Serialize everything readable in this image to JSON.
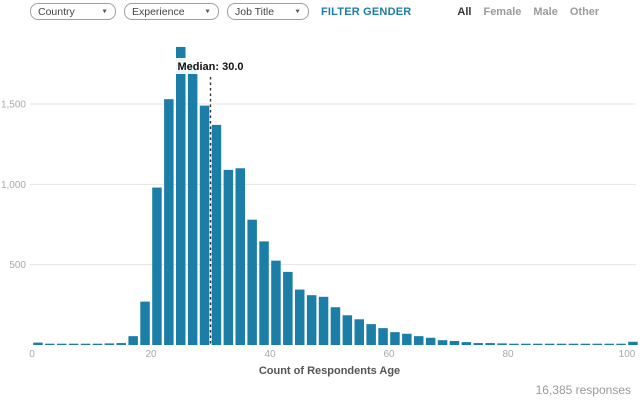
{
  "colors": {
    "accent": "#1b7ea6",
    "bar": "#1b7ea6",
    "grid": "#e4e4e4",
    "axis_text": "#a9a9a9",
    "axis_title_text": "#555555",
    "muted_text": "#999999"
  },
  "icons": {
    "chevron_down": "▼"
  },
  "filters": {
    "dropdowns": [
      {
        "label": "Country"
      },
      {
        "label": "Experience"
      },
      {
        "label": "Job Title"
      }
    ],
    "gender": {
      "label": "FILTER GENDER",
      "options": [
        "All",
        "Female",
        "Male",
        "Other"
      ],
      "selected": "All"
    }
  },
  "chart_data": {
    "type": "bar",
    "title": "",
    "xlabel": "Count of Respondents Age",
    "ylabel": "",
    "xlim": [
      0,
      102
    ],
    "ylim": [
      0,
      1900
    ],
    "grid": "horizontal",
    "legend": null,
    "xticks": [
      0,
      20,
      40,
      60,
      80,
      100
    ],
    "yticks": [
      500,
      1000,
      1500
    ],
    "ytick_labels": [
      "500",
      "1,000",
      "1,500"
    ],
    "bin_width": 2,
    "bins": [
      0,
      2,
      4,
      6,
      8,
      10,
      12,
      14,
      16,
      18,
      20,
      22,
      24,
      26,
      28,
      30,
      32,
      34,
      36,
      38,
      40,
      42,
      44,
      46,
      48,
      50,
      52,
      54,
      56,
      58,
      60,
      62,
      64,
      66,
      68,
      70,
      72,
      74,
      76,
      78,
      80,
      82,
      84,
      86,
      88,
      90,
      92,
      94,
      96,
      98,
      100
    ],
    "values": [
      15,
      8,
      8,
      8,
      6,
      8,
      10,
      12,
      55,
      270,
      980,
      1530,
      1855,
      1760,
      1490,
      1370,
      1090,
      1100,
      780,
      645,
      525,
      455,
      345,
      310,
      300,
      235,
      185,
      160,
      130,
      105,
      80,
      70,
      55,
      45,
      30,
      25,
      18,
      12,
      12,
      10,
      8,
      8,
      5,
      4,
      3,
      3,
      2,
      2,
      2,
      2,
      20
    ],
    "median": {
      "value": 30,
      "label": "Median: 30.0"
    }
  },
  "footer": {
    "responses": "16,385 responses"
  }
}
